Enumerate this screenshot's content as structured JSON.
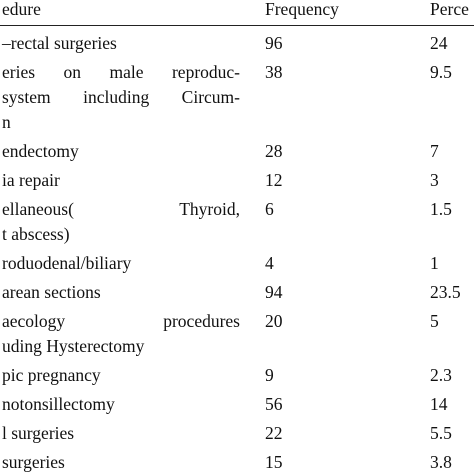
{
  "table": {
    "header": [
      "edure",
      "Frequency",
      "Perce"
    ],
    "rows": [
      [
        [
          "–rectal surgeries"
        ],
        "96",
        "24"
      ],
      [
        [
          "eries on male reproduc-",
          "system including Circum-",
          "n"
        ],
        "38",
        "9.5"
      ],
      [
        [
          "endectomy"
        ],
        "28",
        "7"
      ],
      [
        [
          "ia repair"
        ],
        "12",
        "3"
      ],
      [
        [
          "ellaneous(     Thyroid,",
          "t abscess)"
        ],
        "6",
        "1.5"
      ],
      [
        [
          "roduodenal/biliary"
        ],
        "4",
        "1"
      ],
      [
        [
          "arean sections"
        ],
        "94",
        "23.5"
      ],
      [
        [
          "aecology procedures",
          "uding Hysterectomy"
        ],
        "20",
        "5"
      ],
      [
        [
          "pic pregnancy"
        ],
        "9",
        "2.3"
      ],
      [
        [
          "notonsillectomy"
        ],
        "56",
        "14"
      ],
      [
        [
          "l surgeries"
        ],
        "22",
        "5.5"
      ],
      [
        [
          "surgeries"
        ],
        "15",
        "3.8"
      ]
    ]
  }
}
